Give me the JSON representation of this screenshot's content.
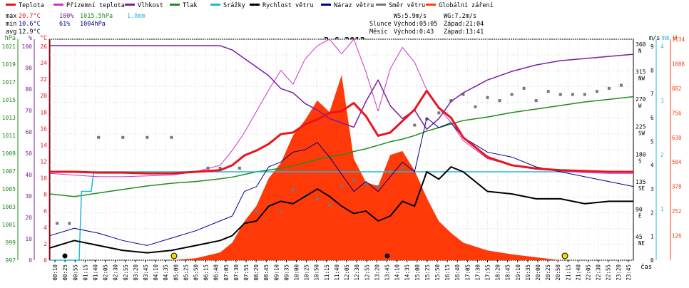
{
  "chart_data": {
    "type": "line",
    "title": "2.6.2013",
    "legend": [
      {
        "label": "Teplota",
        "color": "#e8141e"
      },
      {
        "label": "Přízemní teplota",
        "color": "#cc33cc"
      },
      {
        "label": "Vlhkost",
        "color": "#7a1fa0"
      },
      {
        "label": "Tlak",
        "color": "#228b22"
      },
      {
        "label": "Srážky",
        "color": "#22b8d8"
      },
      {
        "label": "Rychlost větru",
        "color": "#000000"
      },
      {
        "label": "Náraz větru",
        "color": "#00008b"
      },
      {
        "label": "Směr větru",
        "color": "#777777"
      },
      {
        "label": "Globální záření",
        "color": "#ff4010"
      }
    ],
    "stats": {
      "max": {
        "label": "max",
        "temp": "20.7°C",
        "humidity": "100%",
        "pressure": "1015.5hPa",
        "rain": "1.8mm"
      },
      "min": {
        "label": "min",
        "temp": "10.6°C",
        "humidity": "61%",
        "pressure": "1004hPa"
      },
      "avg": {
        "label": "avg",
        "temp": "12.9°C"
      }
    },
    "wind_info": {
      "ws": "WS:5.9m/s",
      "wg": "WG:7.2m/s",
      "sun_label": "Slunce",
      "sun_rise": "Východ:05:05",
      "sun_set": "Západ:21:04",
      "moon_label": "Měsíc",
      "moon_rise": "Východ:0:43",
      "moon_set": "Západ:13:41"
    },
    "xlabel": "čas",
    "x_ticks": [
      "00:10",
      "00:25",
      "00:55",
      "01:15",
      "01:40",
      "02:05",
      "02:30",
      "02:55",
      "03:20",
      "03:45",
      "04:10",
      "04:35",
      "05:00",
      "05:25",
      "05:50",
      "06:15",
      "06:40",
      "07:05",
      "07:30",
      "07:55",
      "08:20",
      "08:45",
      "09:10",
      "09:35",
      "10:00",
      "10:25",
      "10:50",
      "11:15",
      "11:40",
      "12:05",
      "12:30",
      "12:55",
      "13:20",
      "13:45",
      "14:10",
      "14:35",
      "15:00",
      "15:25",
      "15:50",
      "16:15",
      "16:40",
      "17:05",
      "17:30",
      "17:55",
      "18:20",
      "18:45",
      "19:10",
      "19:35",
      "20:00",
      "20:25",
      "20:50",
      "21:15",
      "21:40",
      "22:05",
      "22:30",
      "22:55",
      "23:20",
      "23:45"
    ],
    "axes": {
      "hpa": {
        "label": "hPa",
        "color": "#228b22",
        "ticks": [
          "1021",
          "1019",
          "1017",
          "1015",
          "1013",
          "1011",
          "1009",
          "1007",
          "1005",
          "1003",
          "1001",
          "999",
          "997"
        ]
      },
      "pct": {
        "label": "%",
        "color": "#7a1fa0",
        "ticks": [
          "100",
          "90",
          "80",
          "70",
          "60",
          "50",
          "40",
          "30",
          "20",
          "10",
          "0"
        ]
      },
      "degc": {
        "label": "°C",
        "color": "#e8141e",
        "ticks": [
          "26",
          "24",
          "22",
          "20",
          "18",
          "16",
          "14",
          "12",
          "10",
          "8",
          "6",
          "4",
          "2",
          "0"
        ]
      },
      "ms": {
        "label": "m/s",
        "color": "#000000",
        "ticks": [
          "9",
          "8",
          "7",
          "6",
          "5",
          "4",
          "3",
          "2",
          "1",
          "0"
        ]
      },
      "dir": {
        "label": "",
        "color": "#000000",
        "ticks": [
          {
            "v": "360",
            "d": "N"
          },
          {
            "v": "315",
            "d": "NW"
          },
          {
            "v": "270",
            "d": "W"
          },
          {
            "v": "225",
            "d": "SW"
          },
          {
            "v": "180",
            "d": "S"
          },
          {
            "v": "135",
            "d": "SE"
          },
          {
            "v": "90",
            "d": "E"
          },
          {
            "v": "45",
            "d": "NE"
          }
        ]
      },
      "mm": {
        "label": "mm",
        "color": "#22b8d8",
        "ticks": [
          "4",
          "3",
          "2",
          "1"
        ]
      },
      "wm2": {
        "label": "W",
        "color": "#ff4010",
        "ticks": [
          "1134",
          "1008",
          "882",
          "756",
          "630",
          "504",
          "378",
          "252",
          "126"
        ]
      }
    },
    "ylim": {
      "temp_c": [
        0,
        27
      ],
      "humidity_pct": [
        0,
        103
      ],
      "pressure_hpa": [
        997,
        1022
      ],
      "wind_ms": [
        0,
        9
      ],
      "direction_deg": [
        0,
        360
      ],
      "rain_mm": [
        0,
        4.5
      ],
      "radiation_wm2": [
        0,
        1134
      ]
    },
    "series": [
      {
        "name": "Teplota",
        "x": [
          0,
          1,
          2,
          3,
          4,
          5,
          6,
          7,
          7.5,
          8,
          8.5,
          9,
          9.5,
          10,
          10.5,
          11,
          11.5,
          12,
          12.5,
          13,
          13.5,
          14,
          14.5,
          15,
          15.5,
          16,
          16.5,
          17,
          18,
          19,
          20,
          21,
          22,
          23,
          24
        ],
        "values": [
          10.8,
          10.8,
          10.7,
          10.7,
          10.6,
          10.6,
          10.8,
          11.0,
          11.6,
          12.8,
          13.4,
          14.2,
          15.4,
          15.6,
          16.6,
          17.2,
          18.0,
          18.2,
          19.2,
          17.6,
          15.2,
          15.6,
          17.0,
          18.4,
          20.7,
          18.6,
          17.4,
          15.0,
          12.6,
          11.6,
          11.2,
          11.0,
          10.9,
          10.8,
          10.8
        ]
      },
      {
        "name": "Přízemní teplota",
        "x": [
          0,
          1,
          2,
          3,
          4,
          5,
          6,
          7,
          7.5,
          8,
          8.5,
          9,
          9.5,
          10,
          10.5,
          11,
          11.5,
          12,
          12.5,
          13,
          13.5,
          14,
          14.5,
          15,
          15.5,
          16,
          16.5,
          17,
          18,
          19,
          20,
          21,
          22,
          23,
          24
        ],
        "values": [
          10.6,
          10.4,
          10.2,
          10.2,
          10.3,
          10.4,
          10.8,
          11.6,
          13.4,
          15.6,
          18.2,
          20.8,
          23.2,
          21.5,
          24.6,
          26.2,
          27.0,
          25.2,
          27.0,
          23.0,
          18.2,
          23.4,
          26.0,
          24.2,
          20.8,
          18.6,
          16.8,
          14.6,
          12.4,
          11.6,
          11.1,
          10.9,
          10.7,
          10.6,
          10.6
        ]
      },
      {
        "name": "Vlhkost",
        "x": [
          0,
          1,
          2,
          3,
          4,
          5,
          6,
          7,
          7.5,
          8,
          8.5,
          9,
          9.5,
          10,
          10.5,
          11,
          11.5,
          12,
          12.5,
          13,
          13.5,
          14,
          14.5,
          15,
          15.5,
          16,
          16.5,
          17,
          18,
          19,
          20,
          21,
          22,
          23,
          24
        ],
        "values": [
          100,
          100,
          100,
          100,
          100,
          100,
          100,
          100,
          98,
          94,
          90,
          86,
          80,
          78,
          73,
          70,
          66,
          64,
          62,
          74,
          84,
          72,
          66,
          70,
          61,
          66,
          74,
          78,
          84,
          88,
          91,
          93,
          94,
          95,
          96
        ]
      },
      {
        "name": "Tlak",
        "x": [
          0,
          1,
          2,
          3,
          4,
          5,
          6,
          7,
          7.5,
          8,
          8.5,
          9,
          9.5,
          10,
          10.5,
          11,
          11.5,
          12,
          12.5,
          13,
          13.5,
          14,
          14.5,
          15,
          15.5,
          16,
          16.5,
          17,
          18,
          19,
          20,
          21,
          22,
          23,
          24
        ],
        "values": [
          1004.5,
          1004.2,
          1004.6,
          1005.0,
          1005.4,
          1005.7,
          1005.9,
          1006.2,
          1006.4,
          1006.7,
          1007.0,
          1007.2,
          1007.4,
          1007.7,
          1008.0,
          1008.4,
          1008.7,
          1008.9,
          1009.3,
          1009.6,
          1010.0,
          1010.4,
          1010.7,
          1011.1,
          1011.6,
          1012.0,
          1012.4,
          1012.8,
          1013.2,
          1013.7,
          1014.1,
          1014.5,
          1014.9,
          1015.2,
          1015.5
        ]
      },
      {
        "name": "Srážky",
        "x": [
          0,
          1.2,
          1.3,
          1.7,
          1.8,
          7.7,
          7.8,
          24
        ],
        "values": [
          0,
          0,
          1.4,
          1.4,
          1.8,
          1.8,
          1.8,
          1.8
        ]
      },
      {
        "name": "Rychlost větru",
        "x": [
          0,
          1,
          2,
          3,
          4,
          5,
          6,
          7,
          7.5,
          8,
          8.5,
          9,
          9.5,
          10,
          10.5,
          11,
          11.5,
          12,
          12.5,
          13,
          13.5,
          14,
          14.5,
          15,
          15.5,
          16,
          16.5,
          17,
          18,
          19,
          20,
          21,
          22,
          23,
          24
        ],
        "values": [
          0.5,
          0.8,
          0.6,
          0.4,
          0.3,
          0.4,
          0.6,
          0.8,
          1.0,
          1.5,
          1.6,
          2.2,
          2.4,
          2.3,
          2.6,
          2.9,
          2.6,
          2.2,
          1.9,
          2.0,
          1.6,
          1.8,
          2.4,
          2.2,
          3.6,
          3.3,
          3.8,
          3.6,
          2.8,
          2.7,
          2.5,
          2.5,
          2.3,
          2.4,
          2.4
        ]
      },
      {
        "name": "Náraz větru",
        "x": [
          0,
          1,
          2,
          3,
          4,
          5,
          6,
          7,
          7.5,
          8,
          8.5,
          9,
          9.5,
          10,
          10.5,
          11,
          11.5,
          12,
          12.5,
          13,
          13.5,
          14,
          14.5,
          15,
          15.5,
          16,
          16.5,
          17,
          18,
          19,
          20,
          21,
          22,
          23,
          24
        ],
        "values": [
          1.0,
          1.3,
          1.1,
          0.8,
          0.6,
          0.9,
          1.2,
          1.6,
          1.8,
          2.8,
          3.0,
          3.8,
          4.0,
          4.4,
          4.5,
          4.8,
          4.2,
          3.5,
          2.8,
          3.2,
          2.8,
          3.4,
          4.0,
          3.6,
          5.8,
          5.4,
          5.6,
          5.0,
          4.4,
          4.2,
          3.8,
          3.6,
          3.4,
          3.2,
          3.0
        ]
      },
      {
        "name": "Směr větru",
        "type": "scatter",
        "x": [
          0.3,
          0.8,
          2.0,
          3.0,
          4.0,
          5.0,
          6.5,
          7.0,
          7.8,
          8.5,
          9.0,
          9.5,
          10.0,
          10.5,
          11.0,
          11.5,
          12.0,
          12.5,
          13.0,
          13.5,
          14.0,
          14.5,
          15.0,
          15.5,
          16.0,
          16.5,
          17.0,
          17.5,
          18.0,
          18.5,
          19.0,
          19.5,
          20.0,
          20.5,
          21.0,
          21.5,
          22.0,
          22.5,
          23.0,
          23.5
        ],
        "values": [
          60,
          60,
          200,
          200,
          200,
          200,
          150,
          150,
          150,
          80,
          90,
          80,
          115,
          105,
          100,
          90,
          120,
          130,
          125,
          120,
          145,
          150,
          220,
          230,
          240,
          260,
          270,
          250,
          265,
          260,
          270,
          280,
          260,
          275,
          270,
          270,
          270,
          275,
          280,
          285
        ]
      },
      {
        "name": "Globální záření",
        "type": "area",
        "x": [
          0,
          5,
          6,
          7,
          7.5,
          8,
          8.5,
          9,
          9.5,
          10,
          10.5,
          11,
          11.5,
          12,
          12.5,
          13,
          13.5,
          14,
          14.5,
          15,
          15.5,
          16,
          16.5,
          17,
          18,
          19,
          20,
          21,
          24
        ],
        "values": [
          0,
          0,
          10,
          40,
          90,
          200,
          280,
          420,
          500,
          640,
          720,
          820,
          760,
          950,
          520,
          400,
          380,
          540,
          560,
          460,
          320,
          200,
          140,
          90,
          50,
          30,
          15,
          0,
          0
        ]
      }
    ]
  }
}
